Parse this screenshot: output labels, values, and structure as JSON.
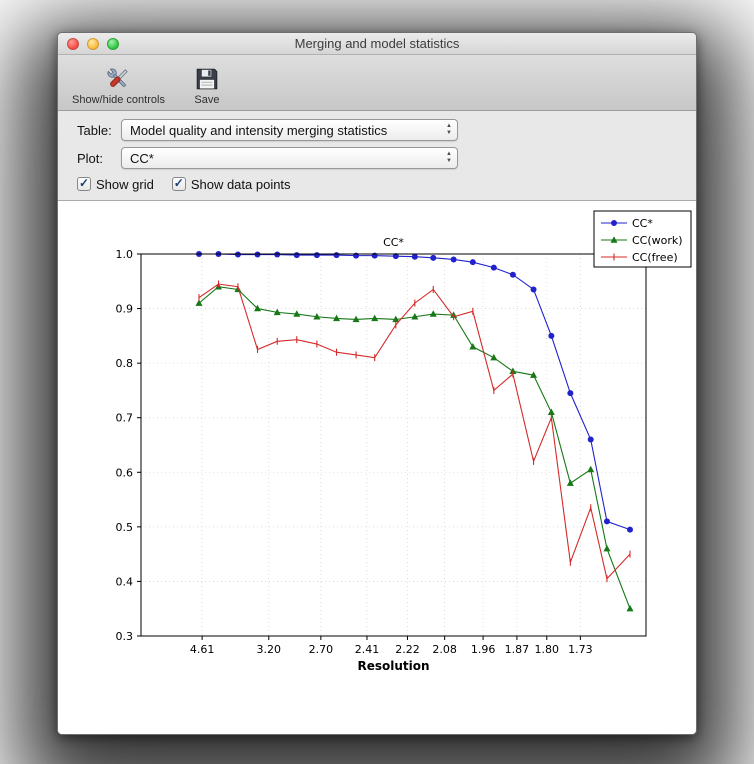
{
  "window": {
    "title": "Merging and model statistics"
  },
  "toolbar": {
    "show_hide_label": "Show/hide controls",
    "show_hide_icon": "tools-icon",
    "save_label": "Save",
    "save_icon": "floppy-disk-icon"
  },
  "controls": {
    "table_label": "Table:",
    "table_value": "Model quality and intensity merging statistics",
    "plot_label": "Plot:",
    "plot_value": "CC*",
    "show_grid_label": "Show grid",
    "show_grid_checked": true,
    "show_data_points_label": "Show data points",
    "show_data_points_checked": true
  },
  "chart_data": {
    "type": "line",
    "title": "CC*",
    "xlabel": "Resolution",
    "ylabel": "",
    "grid": true,
    "legend_position": "upper right",
    "ylim": [
      0.3,
      1.0
    ],
    "yticks": [
      0.3,
      0.4,
      0.5,
      0.6,
      0.7,
      0.8,
      0.9,
      1.0
    ],
    "xticks": [
      4.61,
      3.2,
      2.7,
      2.41,
      2.22,
      2.08,
      1.96,
      1.87,
      1.8,
      1.73
    ],
    "x_resolution_bins": [
      4.73,
      4.1,
      3.67,
      3.35,
      3.1,
      2.9,
      2.73,
      2.59,
      2.47,
      2.37,
      2.27,
      2.19,
      2.12,
      2.05,
      1.99,
      1.93,
      1.88,
      1.83,
      1.79,
      1.75,
      1.71,
      1.68,
      1.64
    ],
    "series": [
      {
        "name": "CC*",
        "color": "#2222cc",
        "marker": "circle",
        "values": [
          1.0,
          1.0,
          0.999,
          0.999,
          0.999,
          0.998,
          0.998,
          0.998,
          0.997,
          0.997,
          0.996,
          0.995,
          0.993,
          0.99,
          0.985,
          0.975,
          0.962,
          0.935,
          0.85,
          0.745,
          0.66,
          0.51,
          0.495
        ]
      },
      {
        "name": "CC(work)",
        "color": "#167816",
        "marker": "triangle",
        "values": [
          0.91,
          0.94,
          0.935,
          0.9,
          0.893,
          0.89,
          0.885,
          0.882,
          0.88,
          0.882,
          0.88,
          0.885,
          0.89,
          0.888,
          0.83,
          0.81,
          0.785,
          0.778,
          0.71,
          0.58,
          0.605,
          0.46,
          0.35
        ]
      },
      {
        "name": "CC(free)",
        "color": "#d42a2a",
        "marker": "vline",
        "values": [
          0.92,
          0.945,
          0.94,
          0.825,
          0.84,
          0.843,
          0.835,
          0.82,
          0.815,
          0.81,
          0.87,
          0.91,
          0.935,
          0.885,
          0.895,
          0.75,
          0.78,
          0.62,
          0.7,
          0.435,
          0.535,
          0.405,
          0.45
        ]
      }
    ]
  }
}
